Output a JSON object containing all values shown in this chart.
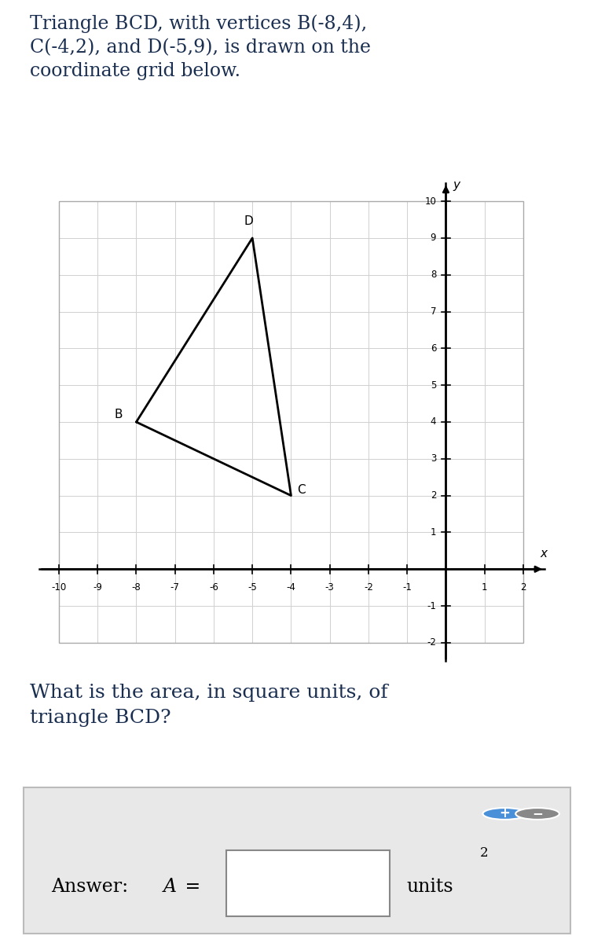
{
  "title_text": "Triangle BCD, with vertices B(-8,4),\nC(-4,2), and D(-5,9), is drawn on the\ncoordinate grid below.",
  "title_fontsize": 17,
  "B": [
    -8,
    4
  ],
  "C": [
    -4,
    2
  ],
  "D": [
    -5,
    9
  ],
  "xlim": [
    -10.6,
    2.6
  ],
  "ylim": [
    -2.6,
    10.6
  ],
  "x_ticks": [
    -10,
    -9,
    -8,
    -7,
    -6,
    -5,
    -4,
    -3,
    -2,
    -1,
    1,
    2
  ],
  "y_ticks": [
    -2,
    -1,
    1,
    2,
    3,
    4,
    5,
    6,
    7,
    8,
    9,
    10
  ],
  "grid_color": "#d0d0d0",
  "triangle_color": "#000000",
  "triangle_linewidth": 2.0,
  "background_color": "#ffffff",
  "question_text": "What is the area, in square units, of\ntriangle BCD?",
  "question_fontsize": 18,
  "answer_label_regular": "Answer:  ",
  "answer_label_italic": "A",
  "answer_label_eq": " =",
  "answer_units": "units",
  "answer_fontsize": 17,
  "answer_box_bg": "#e8e8e8",
  "text_color": "#1a2e50"
}
